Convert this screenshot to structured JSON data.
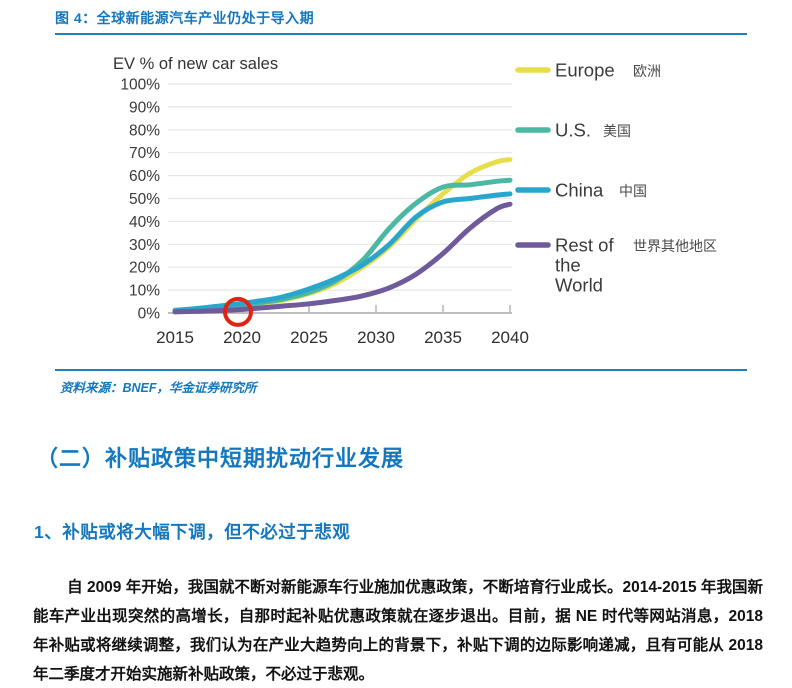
{
  "page": {
    "figure_caption": "图 4：全球新能源汽车产业仍处于导入期",
    "source_note": "资料来源：BNEF，华金证券研究所",
    "section_heading": "（二）补贴政策中短期扰动行业发展",
    "sub_heading": "1、补贴或将大幅下调，但不必过于悲观",
    "body_paragraph": "自 2009 年开始，我国就不断对新能源车行业施加优惠政策，不断培育行业成长。2014-2015 年我国新能车产业出现突然的高增长，自那时起补贴优惠政策就在逐步退出。目前，据 NE 时代等网站消息，2018 年补贴或将继续调整，我们认为在产业大趋势向上的背景下，补贴下调的边际影响递减，且有可能从 2018 年二季度才开始实施新补贴政策，不必过于悲观。"
  },
  "colors": {
    "accent_blue": "#1578be",
    "grid_line": "#e7e7e7",
    "axis_line": "#b5b5b5",
    "chart_text": "#333333",
    "annotation_red": "#e02414"
  },
  "chart_data": {
    "type": "line",
    "title": "EV % of new car sales",
    "xlabel": "",
    "ylabel": "EV % of new car sales",
    "xlim": [
      2015,
      2040
    ],
    "ylim": [
      0,
      100
    ],
    "x_ticks": [
      2015,
      2020,
      2025,
      2030,
      2035,
      2040
    ],
    "y_ticks": [
      "0%",
      "10%",
      "20%",
      "30%",
      "40%",
      "50%",
      "60%",
      "70%",
      "80%",
      "90%",
      "100%"
    ],
    "grid": "horizontal",
    "legend_position": "right",
    "series": [
      {
        "name": "Europe",
        "label_lines": [
          "Europe"
        ],
        "label_zh": "欧洲",
        "zh_dx": 78,
        "color": "#e8de4c",
        "points": [
          [
            2015,
            1
          ],
          [
            2017,
            1.8
          ],
          [
            2019,
            2.6
          ],
          [
            2021,
            3.8
          ],
          [
            2023,
            5.5
          ],
          [
            2025,
            8.5
          ],
          [
            2027,
            13
          ],
          [
            2029,
            20
          ],
          [
            2031,
            29
          ],
          [
            2033,
            41
          ],
          [
            2035,
            52
          ],
          [
            2037,
            61
          ],
          [
            2039,
            66
          ],
          [
            2040,
            67
          ]
        ]
      },
      {
        "name": "U.S.",
        "label_lines": [
          "U.S."
        ],
        "label_zh": "美国",
        "zh_dx": 48,
        "color": "#4cb8a4",
        "points": [
          [
            2015,
            1.2
          ],
          [
            2017,
            2
          ],
          [
            2019,
            3
          ],
          [
            2021,
            4.2
          ],
          [
            2023,
            6
          ],
          [
            2025,
            9
          ],
          [
            2027,
            14
          ],
          [
            2029,
            23
          ],
          [
            2031,
            37
          ],
          [
            2033,
            48
          ],
          [
            2035,
            55
          ],
          [
            2037,
            56
          ],
          [
            2039,
            57.5
          ],
          [
            2040,
            58
          ]
        ]
      },
      {
        "name": "China",
        "label_lines": [
          "China"
        ],
        "label_zh": "中国",
        "zh_dx": 64,
        "color": "#2aa6cd",
        "points": [
          [
            2015,
            1
          ],
          [
            2017,
            2.2
          ],
          [
            2019,
            3.5
          ],
          [
            2021,
            5
          ],
          [
            2023,
            7
          ],
          [
            2025,
            10.5
          ],
          [
            2027,
            15
          ],
          [
            2029,
            21
          ],
          [
            2031,
            30
          ],
          [
            2033,
            42
          ],
          [
            2035,
            48.5
          ],
          [
            2037,
            50
          ],
          [
            2039,
            51.5
          ],
          [
            2040,
            52
          ]
        ]
      },
      {
        "name": "Rest of the World",
        "label_lines": [
          "Rest of",
          "the",
          "World"
        ],
        "label_zh": "世界其他地区",
        "zh_dx": 78,
        "color": "#6f5b9c",
        "points": [
          [
            2015,
            0.5
          ],
          [
            2017,
            0.8
          ],
          [
            2019,
            1.2
          ],
          [
            2021,
            2
          ],
          [
            2023,
            3
          ],
          [
            2025,
            4
          ],
          [
            2027,
            5.5
          ],
          [
            2029,
            7.5
          ],
          [
            2031,
            11
          ],
          [
            2033,
            17
          ],
          [
            2035,
            26
          ],
          [
            2037,
            37
          ],
          [
            2039,
            45.5
          ],
          [
            2040,
            47.5
          ]
        ]
      }
    ],
    "annotation": {
      "type": "circle",
      "x": 2019.7,
      "y": 0.5,
      "r": 13
    }
  }
}
